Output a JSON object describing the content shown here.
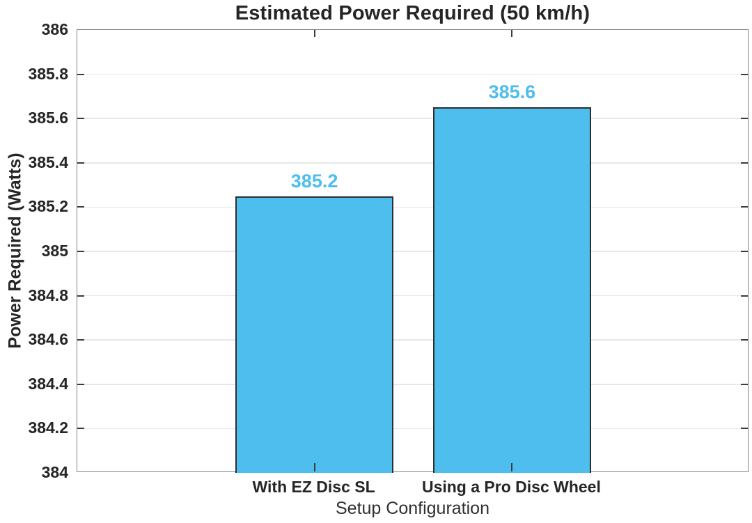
{
  "chart_data": {
    "type": "bar",
    "title": "Estimated Power Required (50 km/h)",
    "xlabel": "Setup Configuration",
    "ylabel": "Power Required (Watts)",
    "categories": [
      "With EZ Disc SL",
      "Using a Pro Disc Wheel"
    ],
    "values": [
      385.25,
      385.65
    ],
    "bar_labels": [
      "385.2",
      "385.6"
    ],
    "ylim": [
      384,
      386
    ],
    "ytick_step": 0.2,
    "ytick_labels": [
      "384",
      "384.2",
      "384.4",
      "384.6",
      "384.8",
      "385",
      "385.2",
      "385.4",
      "385.6",
      "385.8",
      "386"
    ],
    "xlim": [
      -0.2,
      3.2
    ],
    "bar_width_units": 0.8,
    "grid": "horizontal",
    "legend": "none",
    "colors": {
      "bar_fill": "#4DBEEE",
      "bar_edge": "#2E2E2E",
      "value_label": "#4DBEEE",
      "axis_text": "#252525",
      "box": "#828282",
      "tick": "#3C3C3C",
      "grid": "#E7E7E7",
      "background": "#FFFFFF"
    }
  }
}
